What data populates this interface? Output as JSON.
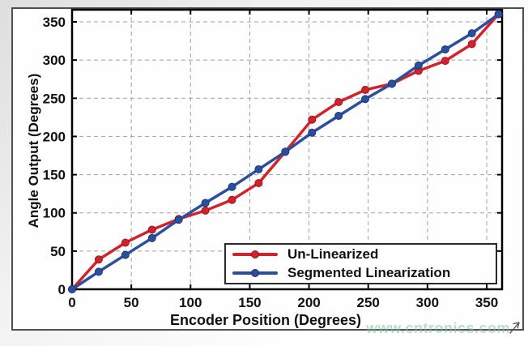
{
  "figure": {
    "watermark": "www.cntronics.com"
  },
  "chart_data": {
    "type": "line",
    "title": "",
    "xlabel": "Encoder Position (Degrees)",
    "ylabel": "Angle Output (Degrees)",
    "xlim": [
      0,
      363
    ],
    "ylim": [
      0,
      366
    ],
    "xticks": [
      0,
      50,
      100,
      150,
      200,
      250,
      300,
      350
    ],
    "yticks": [
      0,
      50,
      100,
      150,
      200,
      250,
      300,
      350
    ],
    "grid": true,
    "grid_style": "dashed",
    "legend_position": "inside-bottom-right",
    "x": [
      0,
      22.5,
      45,
      67.5,
      90,
      112.5,
      135,
      157.5,
      180,
      202.5,
      225,
      247.5,
      270,
      292.5,
      315,
      337.5,
      360
    ],
    "series": [
      {
        "name": "Un-Linearized",
        "color": "#d2232c",
        "marker": "circle",
        "values": [
          0,
          39,
          61,
          78,
          92,
          103,
          117,
          139,
          180,
          222,
          245,
          261,
          269,
          286,
          299,
          321,
          360
        ]
      },
      {
        "name": "Segmented Linearization",
        "color": "#2b4f9e",
        "marker": "circle",
        "values": [
          0,
          23,
          45,
          67,
          91,
          113,
          134,
          157,
          180,
          205,
          227,
          249,
          269,
          293,
          314,
          335,
          360
        ]
      }
    ]
  }
}
